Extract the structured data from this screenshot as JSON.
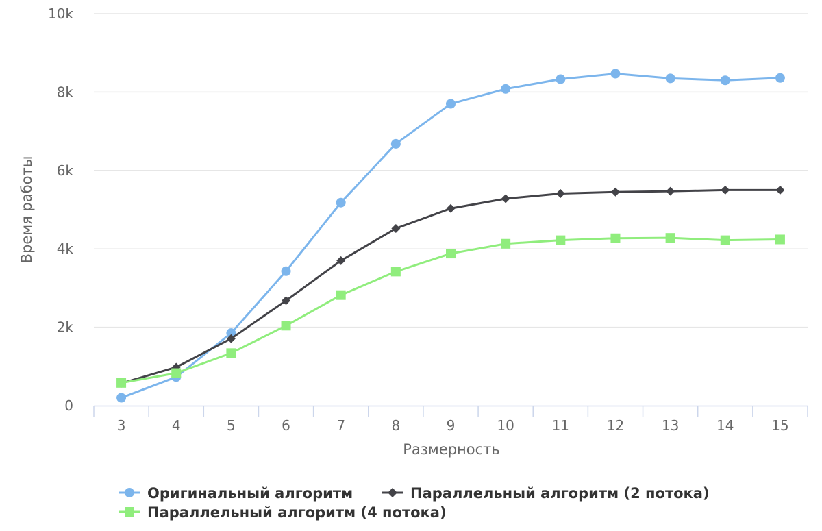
{
  "chart_data": {
    "type": "line",
    "title": "",
    "xlabel": "Размерность",
    "ylabel": "Время работы",
    "categories": [
      "3",
      "4",
      "5",
      "6",
      "7",
      "8",
      "9",
      "10",
      "11",
      "12",
      "13",
      "14",
      "15"
    ],
    "ylim": [
      0,
      10000
    ],
    "yticks": [
      0,
      2000,
      4000,
      6000,
      8000,
      10000
    ],
    "ytick_labels": [
      "0",
      "2k",
      "4k",
      "6k",
      "8k",
      "10k"
    ],
    "grid": true,
    "legend_position": "bottom-center",
    "series": [
      {
        "name": "Оригинальный алгоритм",
        "color": "#7cb5ec",
        "marker": "circle",
        "values": [
          200,
          730,
          1850,
          3430,
          5180,
          6680,
          7700,
          8080,
          8330,
          8470,
          8350,
          8300,
          8360
        ]
      },
      {
        "name": "Параллельный алгоритм (2 потока)",
        "color": "#434348",
        "marker": "diamond",
        "values": [
          570,
          980,
          1710,
          2680,
          3700,
          4520,
          5030,
          5280,
          5410,
          5450,
          5470,
          5500,
          5500
        ]
      },
      {
        "name": "Параллельный алгоритм (4 потока)",
        "color": "#90ed7d",
        "marker": "square",
        "values": [
          580,
          830,
          1340,
          2040,
          2820,
          3420,
          3880,
          4130,
          4220,
          4270,
          4280,
          4220,
          4240
        ]
      }
    ]
  }
}
